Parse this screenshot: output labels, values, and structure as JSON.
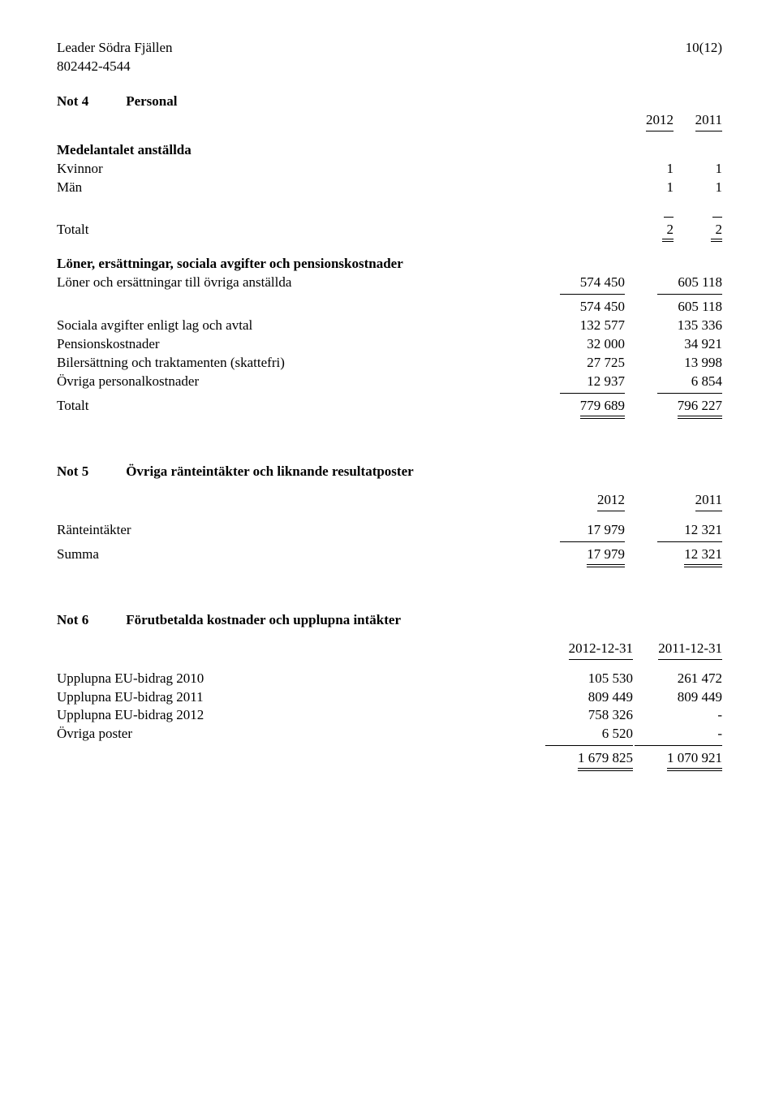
{
  "header": {
    "orgName": "Leader Södra Fjällen",
    "orgNumber": "802442-4544",
    "pageIndicator": "10(12)"
  },
  "not4": {
    "note": "Not 4",
    "title": "Personal",
    "yearCols": [
      "2012",
      "2011"
    ],
    "section1_title": "Medelantalet anställda",
    "rows1": [
      {
        "label": "Kvinnor",
        "c1": "1",
        "c2": "1"
      },
      {
        "label": "Män",
        "c1": "1",
        "c2": "1"
      }
    ],
    "total1": {
      "label": "Totalt",
      "c1": "2",
      "c2": "2"
    },
    "section2_title": "Löner, ersättningar, sociala avgifter och pensionskostnader",
    "rows2a": [
      {
        "label": "Löner och ersättningar till övriga anställda",
        "c1": "574 450",
        "c2": "605 118"
      }
    ],
    "subtotal2a": {
      "c1": "574 450",
      "c2": "605 118"
    },
    "rows2b": [
      {
        "label": "Sociala avgifter enligt lag och avtal",
        "c1": "132 577",
        "c2": "135 336"
      },
      {
        "label": "Pensionskostnader",
        "c1": "32 000",
        "c2": "34 921"
      },
      {
        "label": "Bilersättning och traktamenten (skattefri)",
        "c1": "27 725",
        "c2": "13 998"
      },
      {
        "label": "Övriga personalkostnader",
        "c1": "12 937",
        "c2": "6 854"
      }
    ],
    "total2": {
      "label": "Totalt",
      "c1": "779 689",
      "c2": "796 227"
    }
  },
  "not5": {
    "note": "Not 5",
    "title": "Övriga ränteintäkter och liknande resultatposter",
    "yearCols": [
      "2012",
      "2011"
    ],
    "rows": [
      {
        "label": "Ränteintäkter",
        "c1": "17 979",
        "c2": "12 321"
      }
    ],
    "total": {
      "label": "Summa",
      "c1": "17 979",
      "c2": "12 321"
    }
  },
  "not6": {
    "note": "Not 6",
    "title": "Förutbetalda kostnader och upplupna intäkter",
    "yearCols": [
      "2012-12-31",
      "2011-12-31"
    ],
    "rows": [
      {
        "label": "Upplupna EU-bidrag 2010",
        "c1": "105 530",
        "c2": "261 472"
      },
      {
        "label": "Upplupna EU-bidrag 2011",
        "c1": "809 449",
        "c2": "809 449"
      },
      {
        "label": "Upplupna EU-bidrag 2012",
        "c1": "758 326",
        "c2": "-"
      },
      {
        "label": "Övriga poster",
        "c1": "6 520",
        "c2": "-"
      }
    ],
    "total": {
      "c1": "1 679 825",
      "c2": "1 070 921"
    }
  }
}
